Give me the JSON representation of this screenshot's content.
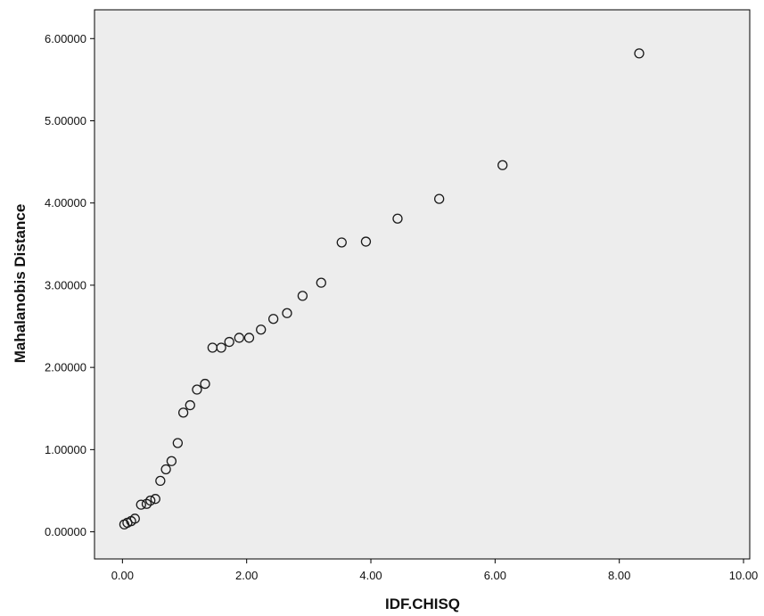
{
  "chart_data": {
    "type": "scatter",
    "title": "",
    "xlabel": "IDF.CHISQ",
    "ylabel": "Mahalanobis Distance",
    "xlim": [
      -0.45,
      10.1
    ],
    "ylim": [
      -0.33,
      6.35
    ],
    "x_ticks": [
      0,
      2,
      4,
      6,
      8,
      10
    ],
    "x_tick_labels": [
      "0.00",
      "2.00",
      "4.00",
      "6.00",
      "8.00",
      "10.00"
    ],
    "y_ticks": [
      0,
      1,
      2,
      3,
      4,
      5,
      6
    ],
    "y_tick_labels": [
      "0.00000",
      "1.00000",
      "2.00000",
      "3.00000",
      "4.00000",
      "5.00000",
      "6.00000"
    ],
    "grid": false,
    "marker": "hollow-circle",
    "colors": {
      "plot_background": "#ededed",
      "marker_stroke": "#1a1a1a",
      "axis": "#000000"
    },
    "points": [
      {
        "x": 0.03,
        "y": 0.09
      },
      {
        "x": 0.08,
        "y": 0.11
      },
      {
        "x": 0.14,
        "y": 0.13
      },
      {
        "x": 0.2,
        "y": 0.16
      },
      {
        "x": 0.3,
        "y": 0.33
      },
      {
        "x": 0.39,
        "y": 0.34
      },
      {
        "x": 0.45,
        "y": 0.38
      },
      {
        "x": 0.53,
        "y": 0.4
      },
      {
        "x": 0.61,
        "y": 0.62
      },
      {
        "x": 0.7,
        "y": 0.76
      },
      {
        "x": 0.79,
        "y": 0.86
      },
      {
        "x": 0.89,
        "y": 1.08
      },
      {
        "x": 0.98,
        "y": 1.45
      },
      {
        "x": 1.09,
        "y": 1.54
      },
      {
        "x": 1.2,
        "y": 1.73
      },
      {
        "x": 1.33,
        "y": 1.8
      },
      {
        "x": 1.45,
        "y": 2.24
      },
      {
        "x": 1.59,
        "y": 2.24
      },
      {
        "x": 1.72,
        "y": 2.31
      },
      {
        "x": 1.88,
        "y": 2.36
      },
      {
        "x": 2.04,
        "y": 2.36
      },
      {
        "x": 2.23,
        "y": 2.46
      },
      {
        "x": 2.43,
        "y": 2.59
      },
      {
        "x": 2.65,
        "y": 2.66
      },
      {
        "x": 2.9,
        "y": 2.87
      },
      {
        "x": 3.2,
        "y": 3.03
      },
      {
        "x": 3.53,
        "y": 3.52
      },
      {
        "x": 3.92,
        "y": 3.53
      },
      {
        "x": 4.43,
        "y": 3.81
      },
      {
        "x": 5.1,
        "y": 4.05
      },
      {
        "x": 6.12,
        "y": 4.46
      },
      {
        "x": 8.32,
        "y": 5.82
      }
    ]
  }
}
